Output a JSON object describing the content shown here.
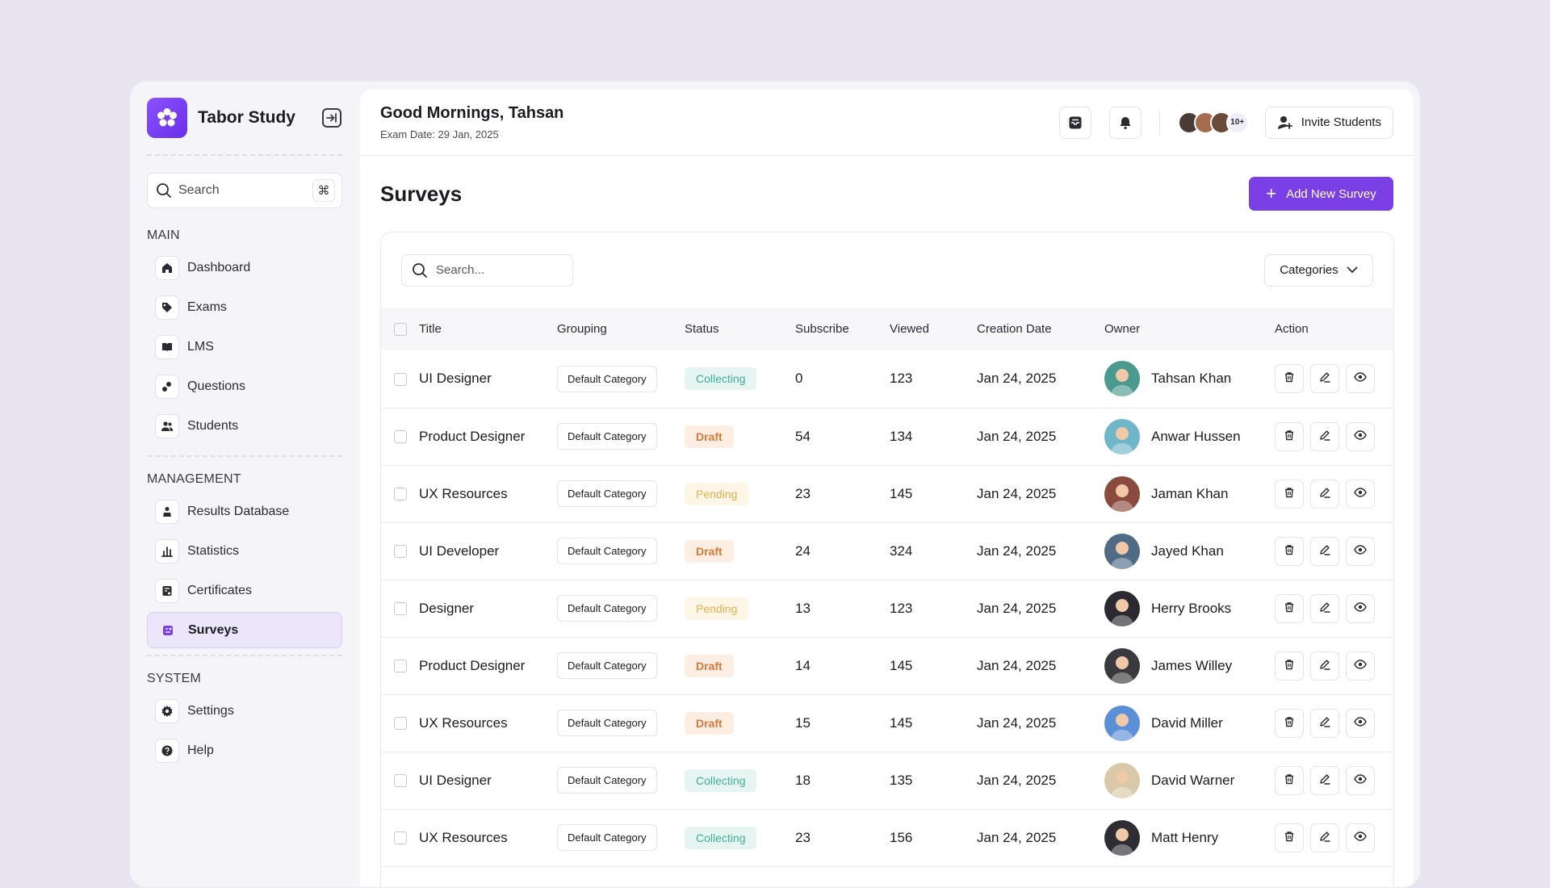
{
  "brand": {
    "name": "Tabor Study"
  },
  "sidebar": {
    "search_placeholder": "Search",
    "search_shortcut": "⌘",
    "sections": [
      {
        "title": "MAIN",
        "items": [
          {
            "label": "Dashboard",
            "icon": "home-icon"
          },
          {
            "label": "Exams",
            "icon": "tag-icon"
          },
          {
            "label": "LMS",
            "icon": "book-icon"
          },
          {
            "label": "Questions",
            "icon": "questions-icon"
          },
          {
            "label": "Students",
            "icon": "users-icon"
          }
        ]
      },
      {
        "title": "MANAGEMENT",
        "items": [
          {
            "label": "Results Database",
            "icon": "results-icon"
          },
          {
            "label": "Statistics",
            "icon": "statistics-icon"
          },
          {
            "label": "Certificates",
            "icon": "certificate-icon"
          },
          {
            "label": "Surveys",
            "icon": "survey-icon",
            "active": true
          }
        ]
      },
      {
        "title": "SYSTEM",
        "items": [
          {
            "label": "Settings",
            "icon": "gear-icon"
          },
          {
            "label": "Help",
            "icon": "help-icon"
          }
        ]
      }
    ]
  },
  "topbar": {
    "greeting": "Good Mornings, Tahsan",
    "exam_date": "Exam Date: 29 Jan, 2025",
    "more_count": "10+",
    "invite_label": "Invite Students"
  },
  "page": {
    "title": "Surveys",
    "add_label": "Add New Survey",
    "table_search_placeholder": "Search...",
    "categories_label": "Categories"
  },
  "colors": {
    "accent": "#7b3fe6",
    "collecting": "#3fae95",
    "draft": "#d9793a",
    "pending": "#e3b24c"
  },
  "table": {
    "columns": [
      "Title",
      "Grouping",
      "Status",
      "Subscribe",
      "Viewed",
      "Creation Date",
      "Owner",
      "Action"
    ],
    "rows": [
      {
        "title": "UI Designer",
        "grouping": "Default Category",
        "status": "Collecting",
        "status_key": "collecting",
        "subscribe": "0",
        "viewed": "123",
        "date": "Jan 24, 2025",
        "owner": "Tahsan Khan",
        "avatar_color": "#4a9a8f"
      },
      {
        "title": "Product Designer",
        "grouping": "Default Category",
        "status": "Draft",
        "status_key": "draft",
        "subscribe": "54",
        "viewed": "134",
        "date": "Jan 24, 2025",
        "owner": "Anwar Hussen",
        "avatar_color": "#6fb6c9"
      },
      {
        "title": "UX Resources",
        "grouping": "Default Category",
        "status": "Pending",
        "status_key": "pending",
        "subscribe": "23",
        "viewed": "145",
        "date": "Jan 24, 2025",
        "owner": "Jaman Khan",
        "avatar_color": "#8a4a3e"
      },
      {
        "title": "UI Developer",
        "grouping": "Default Category",
        "status": "Draft",
        "status_key": "draft",
        "subscribe": "24",
        "viewed": "324",
        "date": "Jan 24, 2025",
        "owner": "Jayed Khan",
        "avatar_color": "#4f6b86"
      },
      {
        "title": "Designer",
        "grouping": "Default Category",
        "status": "Pending",
        "status_key": "pending",
        "subscribe": "13",
        "viewed": "123",
        "date": "Jan 24, 2025",
        "owner": "Herry Brooks",
        "avatar_color": "#2a2a30"
      },
      {
        "title": "Product Designer",
        "grouping": "Default Category",
        "status": "Draft",
        "status_key": "draft",
        "subscribe": "14",
        "viewed": "145",
        "date": "Jan 24, 2025",
        "owner": "James Willey",
        "avatar_color": "#3a3a3e"
      },
      {
        "title": "UX Resources",
        "grouping": "Default Category",
        "status": "Draft",
        "status_key": "draft",
        "subscribe": "15",
        "viewed": "145",
        "date": "Jan 24, 2025",
        "owner": "David Miller",
        "avatar_color": "#5b8fd6"
      },
      {
        "title": "UI Designer",
        "grouping": "Default Category",
        "status": "Collecting",
        "status_key": "collecting",
        "subscribe": "18",
        "viewed": "135",
        "date": "Jan 24, 2025",
        "owner": "David Warner",
        "avatar_color": "#d9c9a8"
      },
      {
        "title": "UX Resources",
        "grouping": "Default Category",
        "status": "Collecting",
        "status_key": "collecting",
        "subscribe": "23",
        "viewed": "156",
        "date": "Jan 24, 2025",
        "owner": "Matt Henry",
        "avatar_color": "#2d2d33"
      }
    ]
  }
}
